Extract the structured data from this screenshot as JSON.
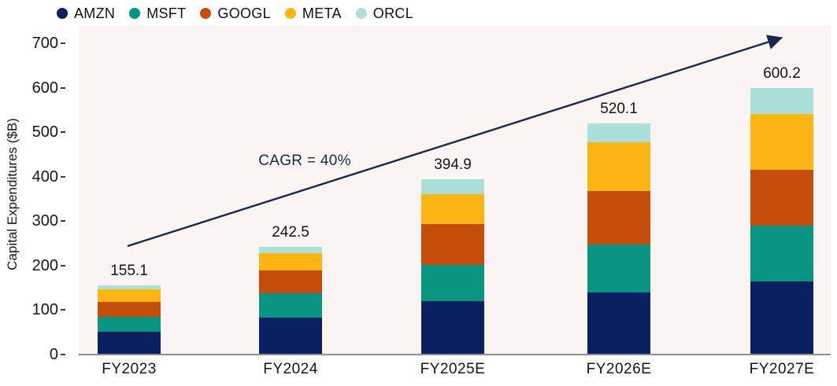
{
  "legend": [
    {
      "label": "AMZN",
      "color": "#0a2161"
    },
    {
      "label": "MSFT",
      "color": "#089481"
    },
    {
      "label": "GOOGL",
      "color": "#c54e0d"
    },
    {
      "label": "META",
      "color": "#fdb515"
    },
    {
      "label": "ORCL",
      "color": "#abe0d8"
    }
  ],
  "y_axis": {
    "title": "Capital Expenditures ($B)",
    "ticks": [
      0,
      100,
      200,
      300,
      400,
      500,
      600,
      700
    ]
  },
  "colors": {
    "plot_background": "#faf4f2",
    "axis_line": "#8f8f8f",
    "tick_mark": "#3a3a3a",
    "arrow": "#16284f",
    "text": "#141414"
  },
  "chart_data": {
    "type": "bar",
    "stacked": true,
    "title": "",
    "xlabel": "",
    "ylabel": "Capital Expenditures ($B)",
    "ylim": [
      0,
      700
    ],
    "grid": false,
    "legend_position": "top",
    "annotation": "CAGR = 40%",
    "categories": [
      "FY2023",
      "FY2024",
      "FY2025E",
      "FY2026E",
      "FY2027E"
    ],
    "series": [
      {
        "name": "AMZN",
        "color": "#0a2161",
        "values": [
          50.6,
          83.5,
          120.8,
          140.2,
          163.9
        ]
      },
      {
        "name": "MSFT",
        "color": "#089481",
        "values": [
          34.0,
          53.8,
          81.3,
          107.8,
          125.7
        ]
      },
      {
        "name": "GOOGL",
        "color": "#c54e0d",
        "values": [
          34.7,
          51.4,
          91.4,
          119.1,
          126.4
        ]
      },
      {
        "name": "META",
        "color": "#fdb515",
        "values": [
          27.4,
          39.8,
          66.7,
          110.1,
          124.5
        ]
      },
      {
        "name": "ORCL",
        "color": "#abe0d8",
        "values": [
          8.4,
          14.0,
          34.7,
          42.9,
          59.7
        ]
      }
    ],
    "totals": [
      155.1,
      242.5,
      394.9,
      520.1,
      600.2
    ]
  }
}
